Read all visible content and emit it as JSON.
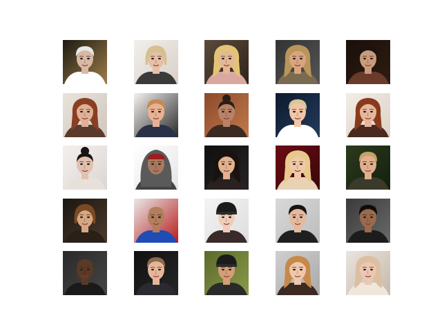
{
  "grid": {
    "rows": 5,
    "cols": 5,
    "tiles": [
      {
        "id": "r1c1",
        "bg": "#1a1a12",
        "bg2": "#a07e4a",
        "skin": "#d9b9a3",
        "hair": "#e8e8e8",
        "clothes": "#ffffff",
        "hair_style": "short"
      },
      {
        "id": "r1c2",
        "bg": "#f2efec",
        "bg2": "#d8cfc8",
        "skin": "#e6c0a6",
        "hair": "#d6c08f",
        "clothes": "#3a3a3a",
        "hair_style": "bob"
      },
      {
        "id": "r1c3",
        "bg": "#5a4a3a",
        "bg2": "#302418",
        "skin": "#e4b894",
        "hair": "#e3c477",
        "clothes": "#d9a8a0",
        "hair_style": "long"
      },
      {
        "id": "r1c4",
        "bg": "#333333",
        "bg2": "#555555",
        "skin": "#d9a57f",
        "hair": "#b9955a",
        "clothes": "#7a6a50",
        "hair_style": "long"
      },
      {
        "id": "r1c5",
        "bg": "#1a0f0a",
        "bg2": "#2e1c12",
        "skin": "#c99b7c",
        "hair": "#1b130e",
        "clothes": "#6a3a2a",
        "hair_style": "short"
      },
      {
        "id": "r2c1",
        "bg": "#e9e3dc",
        "bg2": "#cfc6bc",
        "skin": "#e0b195",
        "hair": "#8a3e22",
        "clothes": "#5a3a2a",
        "hair_style": "long"
      },
      {
        "id": "r2c2",
        "bg": "#f4f1ee",
        "bg2": "#2a2a2a",
        "skin": "#e7b293",
        "hair": "#c58a52",
        "clothes": "#2b3248",
        "hair_style": "short"
      },
      {
        "id": "r2c3",
        "bg": "#8b4a2c",
        "bg2": "#c27a4b",
        "skin": "#b98268",
        "hair": "#2a1e16",
        "clothes": "#3a2a22",
        "hair_style": "bun"
      },
      {
        "id": "r2c4",
        "bg": "#0e1a2e",
        "bg2": "#243b5c",
        "skin": "#f0c6a6",
        "hair": "#d8c79b",
        "clothes": "#ffffff",
        "hair_style": "short"
      },
      {
        "id": "r2c5",
        "bg": "#f2ede7",
        "bg2": "#dcd2c6",
        "skin": "#e6b79b",
        "hair": "#8a3a1c",
        "clothes": "#4a2a1e",
        "hair_style": "long"
      },
      {
        "id": "r3c1",
        "bg": "#f3f0ee",
        "bg2": "#dcd6d2",
        "skin": "#e2c1b0",
        "hair": "#1a1412",
        "clothes": "#e8e0da",
        "hair_style": "bun"
      },
      {
        "id": "r3c2",
        "bg": "#ffffff",
        "bg2": "#e5e5e5",
        "skin": "#a87a5f",
        "hair": "#9b1d1d",
        "clothes": "#444444",
        "hair_style": "hood"
      },
      {
        "id": "r3c3",
        "bg": "#0f0f0f",
        "bg2": "#242424",
        "skin": "#e3b38f",
        "hair": "#1a120e",
        "clothes": "#2a2020",
        "hair_style": "long"
      },
      {
        "id": "r3c4",
        "bg": "#6a0c14",
        "bg2": "#3a0609",
        "skin": "#efc9a8",
        "hair": "#e7c98c",
        "clothes": "#e8d2b4",
        "hair_style": "long"
      },
      {
        "id": "r3c5",
        "bg": "#2c3a1e",
        "bg2": "#14200e",
        "skin": "#e0b08e",
        "hair": "#c4a26a",
        "clothes": "#3a3a2a",
        "hair_style": "short"
      },
      {
        "id": "r4c1",
        "bg": "#1b1612",
        "bg2": "#4a3a2a",
        "skin": "#d6a783",
        "hair": "#7a4a22",
        "clothes": "#2a2018",
        "hair_style": "bob"
      },
      {
        "id": "r4c2",
        "bg": "#e8e8e8",
        "bg2": "#b71c1c",
        "skin": "#b27e5e",
        "hair": "#3a2a22",
        "clothes": "#1f4db5",
        "hair_style": "bald"
      },
      {
        "id": "r4c3",
        "bg": "#f4f4f4",
        "bg2": "#dddddd",
        "skin": "#f0cdb8",
        "hair": "#1b1b1b",
        "clothes": "#3a2a2a",
        "hair_style": "beanie"
      },
      {
        "id": "r4c4",
        "bg": "#d9d9d9",
        "bg2": "#bcbcbc",
        "skin": "#e5b99c",
        "hair": "#1a1410",
        "clothes": "#1f1f1f",
        "hair_style": "short"
      },
      {
        "id": "r4c5",
        "bg": "#3a3a3a",
        "bg2": "#6a6a6a",
        "skin": "#9a6a4c",
        "hair": "#120c08",
        "clothes": "#1c1c1c",
        "hair_style": "braids"
      },
      {
        "id": "r5c1",
        "bg": "#2a2a2a",
        "bg2": "#454545",
        "skin": "#5a3a26",
        "hair": "#120c08",
        "clothes": "#1a1a1a",
        "hair_style": "bald"
      },
      {
        "id": "r5c2",
        "bg": "#101010",
        "bg2": "#262626",
        "skin": "#e6b69a",
        "hair": "#8a6a4a",
        "clothes": "#2a2a30",
        "hair_style": "short"
      },
      {
        "id": "r5c3",
        "bg": "#5a6a2a",
        "bg2": "#8b9a4a",
        "skin": "#d49e78",
        "hair": "#1b1b1b",
        "clothes": "#2a2a2a",
        "hair_style": "beanie"
      },
      {
        "id": "r5c4",
        "bg": "#cfcfcf",
        "bg2": "#a9a9a9",
        "skin": "#efc8ac",
        "hair": "#c7894a",
        "clothes": "#3a2a22",
        "hair_style": "long"
      },
      {
        "id": "r5c5",
        "bg": "#e9e4de",
        "bg2": "#c6b9ab",
        "skin": "#ecc7b3",
        "hair": "#dcbfa0",
        "clothes": "#f0e6dc",
        "hair_style": "curly"
      }
    ]
  }
}
